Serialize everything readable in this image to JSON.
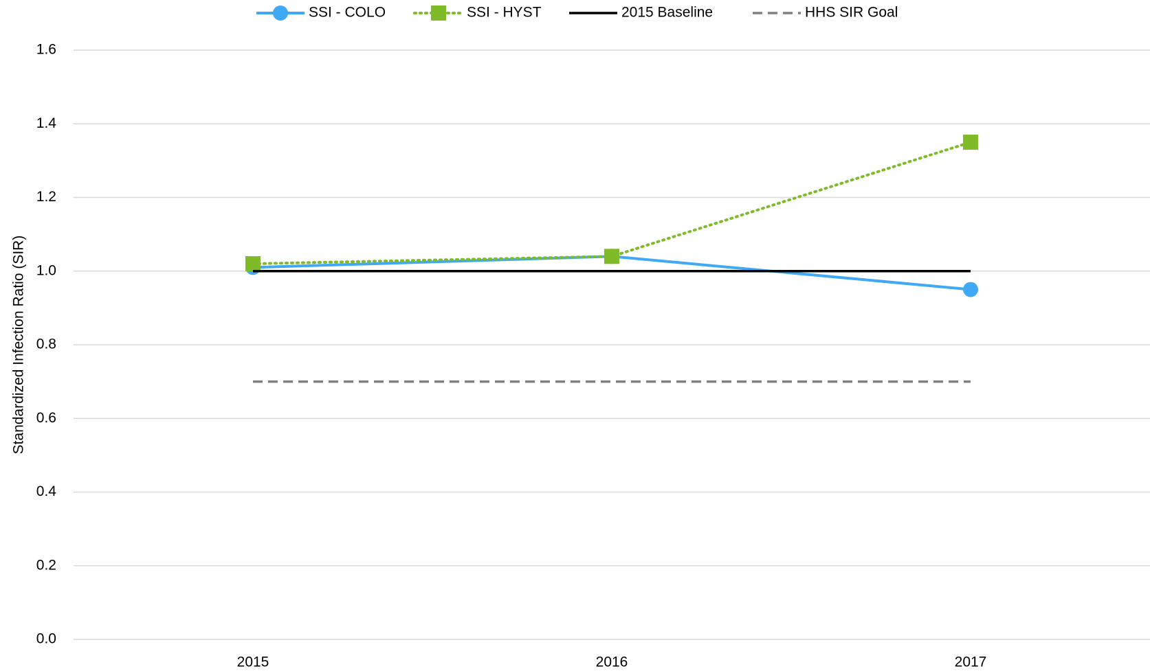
{
  "chart_data": {
    "type": "line",
    "y_label": "Standardized Infection Ratio (SIR)",
    "categories": [
      "2015",
      "2016",
      "2017"
    ],
    "series": [
      {
        "name": "SSI - COLO",
        "color": "#3fa9f5",
        "marker": "circle",
        "dash": "solid",
        "values": [
          1.01,
          1.04,
          0.95
        ]
      },
      {
        "name": "SSI - HYST",
        "color": "#7fba28",
        "marker": "square",
        "dash": "dotted",
        "values": [
          1.02,
          1.04,
          1.35
        ]
      },
      {
        "name": "2015 Baseline",
        "color": "#000000",
        "marker": "none",
        "dash": "solid",
        "values": [
          1,
          1,
          1
        ]
      },
      {
        "name": "HHS SIR Goal",
        "color": "#808080",
        "marker": "none",
        "dash": "dashed",
        "values": [
          0.7,
          0.7,
          0.7
        ]
      }
    ],
    "ylim": [
      0,
      1.6
    ],
    "yticks": [
      {
        "value": 0,
        "label": "0.0"
      },
      0.2,
      0.4,
      0.6,
      0.8,
      {
        "value": 1,
        "label": "1.0"
      },
      1.2,
      1.4,
      1.6
    ],
    "grid": true,
    "legend": "top"
  }
}
